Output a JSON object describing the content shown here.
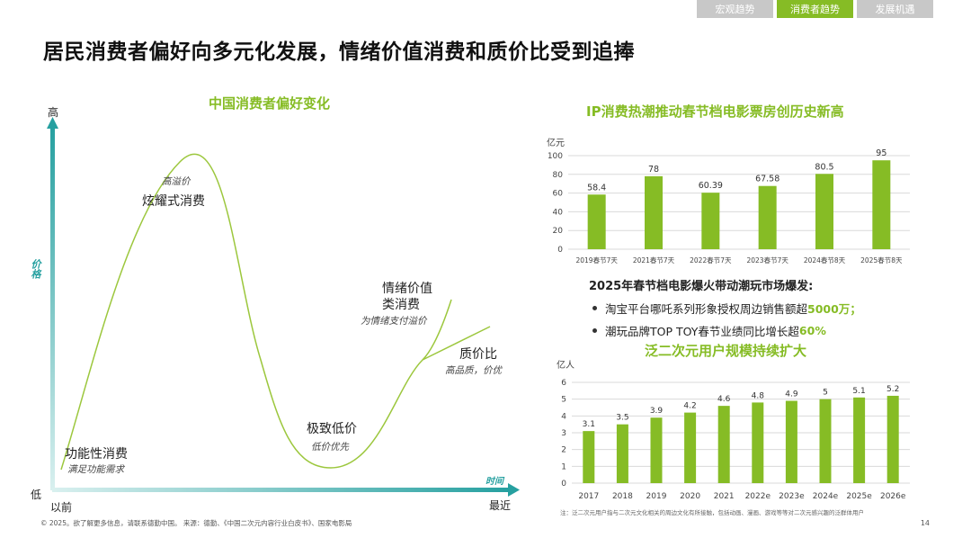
{
  "tabs": [
    {
      "label": "宏观趋势",
      "active": false
    },
    {
      "label": "消费者趋势",
      "active": true
    },
    {
      "label": "发展机遇",
      "active": false
    }
  ],
  "page_title": "居民消费者偏好向多元化发展，情绪价值消费和质价比受到追捧",
  "diagram": {
    "title": "中国消费者偏好变化",
    "y_high": "高",
    "y_low": "低",
    "y_axis_label": "价格",
    "x_start": "以前",
    "x_end": "最近",
    "x_axis_label": "时间",
    "stages": [
      {
        "label": "功能性消费",
        "sub": "满足功能需求"
      },
      {
        "label": "炫耀式消费",
        "sub": "高溢价"
      },
      {
        "label": "极致低价",
        "sub": "低价优先"
      },
      {
        "label": "情绪价值",
        "label2": "类消费",
        "sub": "为情绪支付溢价"
      },
      {
        "label": "质价比",
        "sub": "高品质，价优"
      }
    ]
  },
  "chart_data": [
    {
      "type": "bar",
      "title": "IP消费热潮推动春节档电影票房创历史新高",
      "ylabel": "亿元",
      "categories": [
        "2019春节7天",
        "2021春节7天",
        "2022春节7天",
        "2023春节7天",
        "2024春节8天",
        "2025春节8天"
      ],
      "values": [
        58.4,
        78,
        60.39,
        67.58,
        80.5,
        95
      ],
      "value_labels": [
        "58.4",
        "78",
        "60.39",
        "67.58",
        "80.5",
        "95"
      ],
      "ylim": [
        0,
        100
      ],
      "yticks": [
        0,
        20,
        40,
        60,
        80,
        100
      ],
      "grid": true,
      "color": "#86bc25"
    },
    {
      "type": "bar",
      "title": "泛二次元用户规模持续扩大",
      "ylabel": "亿人",
      "categories": [
        "2017",
        "2018",
        "2019",
        "2020",
        "2021",
        "2022e",
        "2023e",
        "2024e",
        "2025e",
        "2026e"
      ],
      "values": [
        3.1,
        3.5,
        3.9,
        4.2,
        4.6,
        4.8,
        4.9,
        5,
        5.1,
        5.2
      ],
      "value_labels": [
        "3.1",
        "3.5",
        "3.9",
        "4.2",
        "4.6",
        "4.8",
        "4.9",
        "5",
        "5.1",
        "5.2"
      ],
      "ylim": [
        0,
        6
      ],
      "yticks": [
        0,
        1,
        2,
        3,
        4,
        5,
        6
      ],
      "grid": true,
      "color": "#86bc25"
    }
  ],
  "bullets": {
    "heading": "2025年春节档电影爆火带动潮玩市场爆发:",
    "items": [
      {
        "text": "淘宝平台哪吒系列形象授权周边销售额超",
        "highlight": "5000万",
        "tail": "；"
      },
      {
        "text": "潮玩品牌TOP TOY春节业绩同比增长超",
        "highlight": "60%",
        "tail": ""
      }
    ]
  },
  "footer": "© 2025。欲了解更多信息，请联系德勤中国。     来源：德勤、《中国二次元内容行业白皮书》、国家电影局",
  "note": "注：泛二次元用户指与二次元文化相关的周边文化有所接触，包括动画、漫画、游戏等等对二次元感兴趣的泛群体用户",
  "page_number": "14",
  "colors": {
    "accent": "#86bc25",
    "axis": "#26a0a0",
    "tab_inactive": "#c8c8c8"
  }
}
